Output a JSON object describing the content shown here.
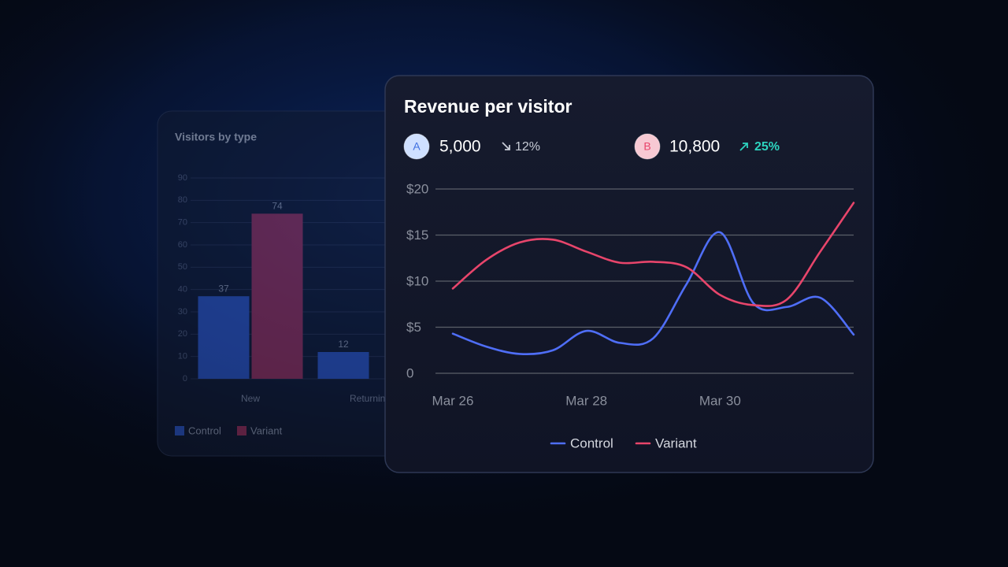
{
  "chart_data": [
    {
      "type": "bar",
      "title": "Visitors by type",
      "categories": [
        "New",
        "Returning"
      ],
      "series": [
        {
          "name": "Control",
          "color": "#2f5bd0",
          "values": [
            37,
            12
          ]
        },
        {
          "name": "Variant",
          "color": "#a3335f",
          "values": [
            74,
            null
          ]
        }
      ],
      "ylim": [
        0,
        90
      ],
      "yticks": [
        0,
        10,
        20,
        30,
        40,
        50,
        60,
        70,
        80,
        90
      ],
      "grid": true
    },
    {
      "type": "line",
      "title": "Revenue per visitor",
      "categories": [
        "Mar 26",
        null,
        null,
        null,
        "Mar 28",
        null,
        null,
        null,
        "Mar 30",
        null,
        null,
        null,
        null
      ],
      "series": [
        {
          "name": "Control",
          "color": "#4f6ef7",
          "values": [
            4.3,
            2.9,
            2.1,
            2.5,
            4.6,
            3.3,
            3.8,
            9.7,
            15.3,
            7.6,
            7.2,
            8.2,
            4.2
          ]
        },
        {
          "name": "Variant",
          "color": "#e8456b",
          "values": [
            9.2,
            12.3,
            14.2,
            14.5,
            13.2,
            12.0,
            12.1,
            11.5,
            8.5,
            7.4,
            8.0,
            13.2,
            18.5
          ]
        }
      ],
      "ylim": [
        0,
        20
      ],
      "yticks": [
        0,
        {
          "value": 5,
          "label": "$5"
        },
        {
          "value": 10,
          "label": "$10"
        },
        {
          "value": 15,
          "label": "$15"
        },
        {
          "value": 20,
          "label": "$20"
        }
      ],
      "grid": true
    }
  ],
  "kpis": [
    {
      "badge": "A",
      "value": "5,000",
      "change": "12%"
    },
    {
      "badge": "B",
      "value": "10,800",
      "change": "25%"
    }
  ]
}
